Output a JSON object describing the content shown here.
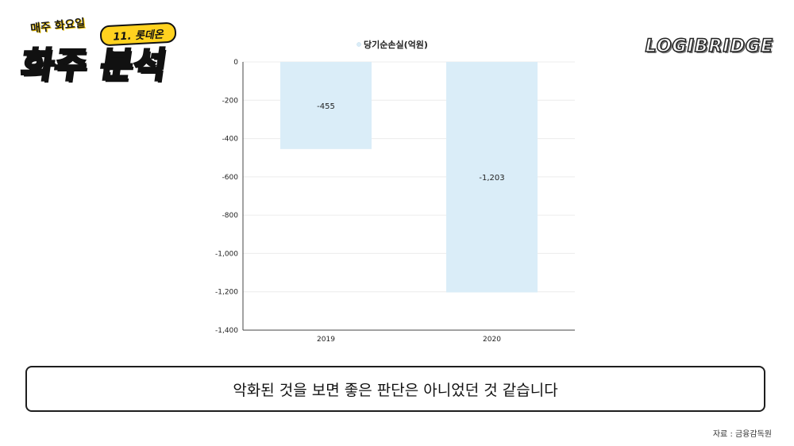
{
  "branding": {
    "series_top": "매주 화요일",
    "episode": "11. 롯데온",
    "series_main": "화주 분석",
    "brand": "LOGIBRIDGE"
  },
  "chart_data": {
    "type": "bar",
    "categories": [
      "2019",
      "2020"
    ],
    "series": [
      {
        "name": "당기순손실(억원)",
        "values": [
          -455,
          -1203
        ],
        "color": "#daedf8"
      }
    ],
    "data_labels": [
      "-455",
      "-1,203"
    ],
    "ylim": [
      -1400,
      0
    ],
    "yticks": [
      0,
      -200,
      -400,
      -600,
      -800,
      -1000,
      -1200,
      -1400
    ],
    "ytick_labels": [
      "0",
      "-200",
      "-400",
      "-600",
      "-800",
      "-1,000",
      "-1,200",
      "-1,400"
    ],
    "legend_placement": "top-center",
    "grid": true
  },
  "caption": "악화된 것을 보면 좋은 판단은 아니었던 것 같습니다",
  "source": "자료 : 금융감독원"
}
